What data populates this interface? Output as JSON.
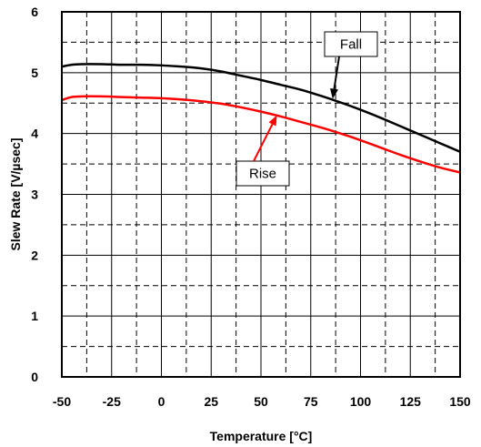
{
  "chart_data": {
    "type": "line",
    "title": "",
    "xlabel": "Temperature [°C]",
    "ylabel": "Slew Rate [V/µsec]",
    "xlim": [
      -50,
      150
    ],
    "ylim": [
      0,
      6
    ],
    "x_ticks": [
      -50,
      -25,
      0,
      25,
      50,
      75,
      100,
      125,
      150
    ],
    "y_ticks": [
      0,
      1,
      2,
      3,
      4,
      5,
      6
    ],
    "x_tick_labels": [
      "-50",
      "-25",
      "0",
      "25",
      "50",
      "75",
      "100",
      "125",
      "150"
    ],
    "y_tick_labels": [
      "0",
      "1",
      "2",
      "3",
      "4",
      "5",
      "6"
    ],
    "grid": {
      "major": "solid",
      "minor": "dashed"
    },
    "legend": "none",
    "series": [
      {
        "name": "Fall",
        "color": "#000000",
        "x": [
          -50,
          -45,
          -40,
          -30,
          -20,
          -10,
          0,
          10,
          20,
          30,
          40,
          50,
          60,
          70,
          80,
          90,
          100,
          110,
          120,
          130,
          140,
          150
        ],
        "y": [
          5.1,
          5.13,
          5.14,
          5.14,
          5.13,
          5.13,
          5.12,
          5.1,
          5.07,
          5.02,
          4.95,
          4.88,
          4.8,
          4.72,
          4.62,
          4.51,
          4.39,
          4.26,
          4.12,
          3.98,
          3.84,
          3.7
        ]
      },
      {
        "name": "Rise",
        "color": "#ff0000",
        "x": [
          -50,
          -45,
          -40,
          -30,
          -20,
          -10,
          0,
          10,
          20,
          30,
          40,
          50,
          60,
          70,
          80,
          90,
          100,
          110,
          120,
          130,
          140,
          150
        ],
        "y": [
          4.55,
          4.6,
          4.61,
          4.61,
          4.6,
          4.59,
          4.58,
          4.56,
          4.53,
          4.49,
          4.43,
          4.36,
          4.28,
          4.19,
          4.1,
          4.0,
          3.89,
          3.77,
          3.65,
          3.54,
          3.44,
          3.36
        ]
      }
    ],
    "annotations": [
      {
        "text": "Fall",
        "series": "Fall",
        "target_x": 86,
        "target_y": 4.57
      },
      {
        "text": "Rise",
        "series": "Rise",
        "target_x": 58,
        "target_y": 4.3
      }
    ]
  }
}
